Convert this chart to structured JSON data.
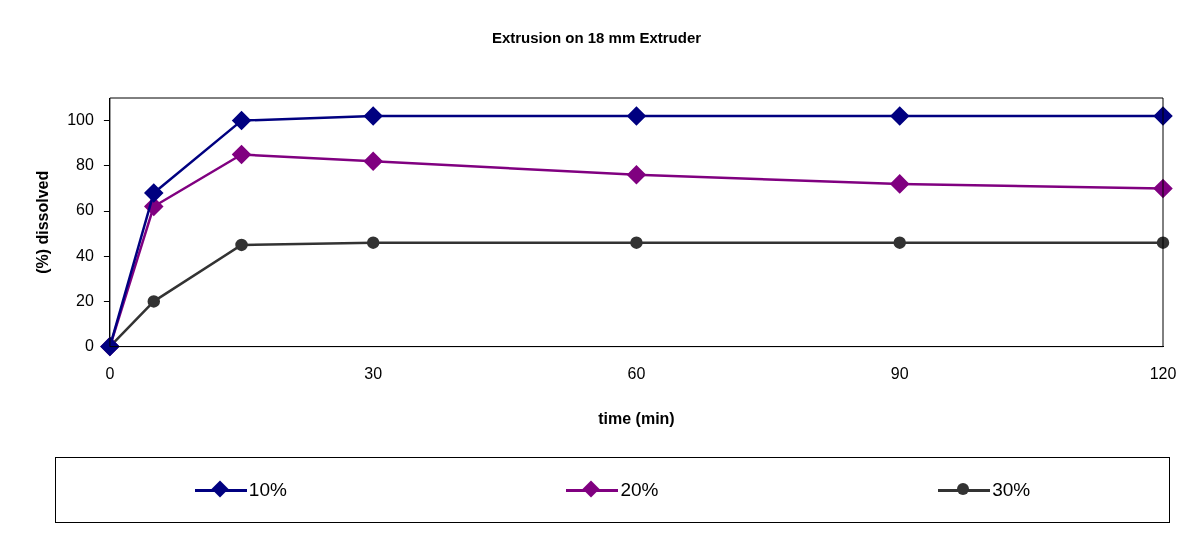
{
  "chart_data": {
    "type": "line",
    "title": "Extrusion on 18 mm Extruder",
    "xlabel": "time (min)",
    "ylabel": "(%) dissolved",
    "x": [
      0,
      5,
      15,
      30,
      60,
      90,
      120
    ],
    "series": [
      {
        "name": "10%",
        "color": "#000080",
        "marker": "diamond",
        "values": [
          0,
          68,
          100,
          102,
          102,
          102,
          102
        ]
      },
      {
        "name": "20%",
        "color": "#800080",
        "marker": "diamond",
        "values": [
          0,
          62,
          85,
          82,
          76,
          72,
          70
        ]
      },
      {
        "name": "30%",
        "color": "#333333",
        "marker": "circle",
        "values": [
          0,
          20,
          45,
          46,
          46,
          46,
          46
        ]
      }
    ],
    "xlim": [
      0,
      120
    ],
    "xticks": [
      0,
      30,
      60,
      90,
      120
    ],
    "ylim": [
      0,
      110
    ],
    "yticks": [
      0,
      20,
      40,
      60,
      80,
      100
    ],
    "grid": false,
    "legend": "bottom",
    "line_style": "solid"
  }
}
